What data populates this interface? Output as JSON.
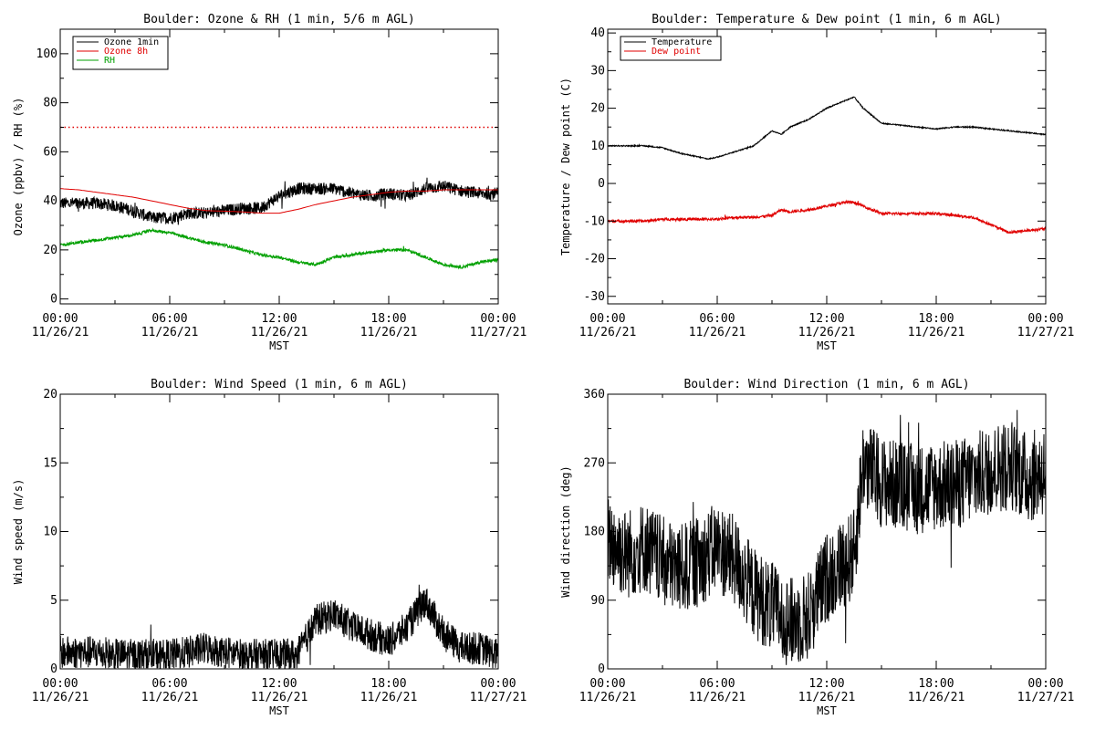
{
  "chart_data": [
    {
      "type": "line",
      "title": "Boulder: Ozone & RH (1 min, 5/6 m AGL)",
      "xlabel": "MST",
      "ylabel": "Ozone (ppbv) / RH (%)",
      "xlim": [
        "11/26/21 00:00",
        "11/27/21 00:00"
      ],
      "x_ticks": [
        {
          "time": "00:00",
          "date": "11/26/21"
        },
        {
          "time": "06:00",
          "date": "11/26/21"
        },
        {
          "time": "12:00",
          "date": "11/26/21"
        },
        {
          "time": "18:00",
          "date": "11/26/21"
        },
        {
          "time": "00:00",
          "date": "11/27/21"
        }
      ],
      "ylim": [
        -2,
        110
      ],
      "y_ticks": [
        0,
        20,
        40,
        60,
        80,
        100
      ],
      "legend": "top-left",
      "grid": false,
      "x_hours": [
        0,
        1,
        2,
        3,
        4,
        5,
        6,
        7,
        8,
        9,
        10,
        11,
        12,
        13,
        14,
        15,
        16,
        17,
        18,
        19,
        20,
        21,
        22,
        23,
        24
      ],
      "series": [
        {
          "name": "Ozone 1min",
          "color": "#000000",
          "noise": 2.5,
          "values": [
            39,
            39,
            39,
            38,
            36,
            33,
            33,
            35,
            35,
            36,
            37,
            37,
            42,
            45,
            45,
            45,
            43,
            42,
            43,
            42,
            45,
            46,
            44,
            43,
            43
          ]
        },
        {
          "name": "Ozone 8h",
          "color": "#e00000",
          "noise": 0,
          "values": [
            45,
            44.5,
            43.5,
            42.5,
            41.5,
            40,
            38.5,
            37,
            36,
            35.8,
            35.5,
            35,
            35,
            36.5,
            38.5,
            40,
            41.5,
            42.5,
            43.5,
            44,
            44,
            44.5,
            44.5,
            44.5,
            44.5
          ]
        },
        {
          "name": "RH",
          "color": "#00a000",
          "noise": 0.6,
          "values": [
            22,
            23,
            24,
            25,
            26,
            28,
            27,
            25,
            23,
            22,
            20,
            18,
            17,
            15,
            14,
            17,
            18,
            19,
            20,
            20,
            17,
            14,
            13,
            15,
            16
          ]
        }
      ],
      "reference_line": {
        "y": 70,
        "color": "#e00000",
        "style": "dotted"
      }
    },
    {
      "type": "line",
      "title": "Boulder: Temperature & Dew point (1 min, 6 m AGL)",
      "xlabel": "MST",
      "ylabel": "Temperature / Dew point (C)",
      "xlim": [
        "11/26/21 00:00",
        "11/27/21 00:00"
      ],
      "x_ticks": [
        {
          "time": "00:00",
          "date": "11/26/21"
        },
        {
          "time": "06:00",
          "date": "11/26/21"
        },
        {
          "time": "12:00",
          "date": "11/26/21"
        },
        {
          "time": "18:00",
          "date": "11/26/21"
        },
        {
          "time": "00:00",
          "date": "11/27/21"
        }
      ],
      "ylim": [
        -32,
        41
      ],
      "y_ticks": [
        -30,
        -20,
        -10,
        0,
        10,
        20,
        30,
        40
      ],
      "legend": "top-left",
      "grid": false,
      "x_hours": [
        0,
        1,
        2,
        3,
        4,
        5,
        5.5,
        6,
        7,
        8,
        9,
        9.5,
        10,
        11,
        12,
        13,
        13.5,
        14,
        15,
        16,
        17,
        18,
        19,
        20,
        21,
        22,
        23,
        24
      ],
      "series": [
        {
          "name": "Temperature",
          "color": "#000000",
          "noise": 0.15,
          "values": [
            10,
            10,
            10,
            9.5,
            8,
            7,
            6.5,
            7,
            8.5,
            10,
            14,
            13,
            15,
            17,
            20,
            22,
            23,
            20,
            16,
            15.5,
            15,
            14.5,
            15,
            15,
            14.5,
            14,
            13.5,
            13
          ]
        },
        {
          "name": "Dew point",
          "color": "#e00000",
          "noise": 0.35,
          "values": [
            -10,
            -10,
            -10,
            -9.5,
            -9.5,
            -9.5,
            -9.5,
            -9.5,
            -9,
            -9,
            -8.5,
            -7,
            -7.5,
            -7,
            -6,
            -5,
            -5,
            -6,
            -8,
            -8,
            -8,
            -8,
            -8.5,
            -9,
            -11,
            -13,
            -12.5,
            -12
          ]
        }
      ]
    },
    {
      "type": "line",
      "title": "Boulder: Wind Speed (1 min, 6 m AGL)",
      "xlabel": "MST",
      "ylabel": "Wind speed (m/s)",
      "xlim": [
        "11/26/21 00:00",
        "11/27/21 00:00"
      ],
      "x_ticks": [
        {
          "time": "00:00",
          "date": "11/26/21"
        },
        {
          "time": "06:00",
          "date": "11/26/21"
        },
        {
          "time": "12:00",
          "date": "11/26/21"
        },
        {
          "time": "18:00",
          "date": "11/26/21"
        },
        {
          "time": "00:00",
          "date": "11/27/21"
        }
      ],
      "ylim": [
        0,
        20
      ],
      "y_ticks": [
        0,
        5,
        10,
        15,
        20
      ],
      "grid": false,
      "x_hours": [
        0,
        1,
        2,
        3,
        4,
        5,
        6,
        7,
        8,
        9,
        10,
        11,
        12,
        13,
        14,
        15,
        16,
        17,
        18,
        19,
        20,
        21,
        22,
        23,
        24
      ],
      "series": [
        {
          "name": "",
          "color": "#000000",
          "noise": 1.2,
          "values": [
            1.2,
            1.2,
            1.2,
            1.0,
            1.0,
            1.0,
            1.0,
            1.2,
            1.5,
            1.2,
            1.0,
            1.0,
            1.0,
            1.0,
            3.5,
            4.0,
            3.0,
            2.5,
            2.0,
            3.0,
            5.0,
            2.5,
            1.5,
            1.5,
            1.0
          ]
        }
      ]
    },
    {
      "type": "line",
      "title": "Boulder: Wind Direction (1 min, 6 m AGL)",
      "xlabel": "MST",
      "ylabel": "Wind direction (deg)",
      "xlim": [
        "11/26/21 00:00",
        "11/27/21 00:00"
      ],
      "x_ticks": [
        {
          "time": "00:00",
          "date": "11/26/21"
        },
        {
          "time": "06:00",
          "date": "11/26/21"
        },
        {
          "time": "12:00",
          "date": "11/26/21"
        },
        {
          "time": "18:00",
          "date": "11/26/21"
        },
        {
          "time": "00:00",
          "date": "11/27/21"
        }
      ],
      "ylim": [
        0,
        360
      ],
      "y_ticks": [
        0,
        90,
        180,
        270,
        360
      ],
      "grid": false,
      "x_hours": [
        0,
        1,
        2,
        3,
        4,
        5,
        6,
        7,
        8,
        9,
        10,
        11,
        12,
        13,
        13.5,
        14,
        15,
        16,
        17,
        18,
        19,
        20,
        21,
        22,
        23,
        24
      ],
      "series": [
        {
          "name": "",
          "color": "#000000",
          "noise": 60,
          "values": [
            170,
            150,
            160,
            140,
            130,
            140,
            160,
            140,
            100,
            80,
            60,
            70,
            120,
            140,
            150,
            270,
            245,
            240,
            235,
            240,
            240,
            250,
            260,
            270,
            250,
            260
          ]
        }
      ]
    }
  ]
}
